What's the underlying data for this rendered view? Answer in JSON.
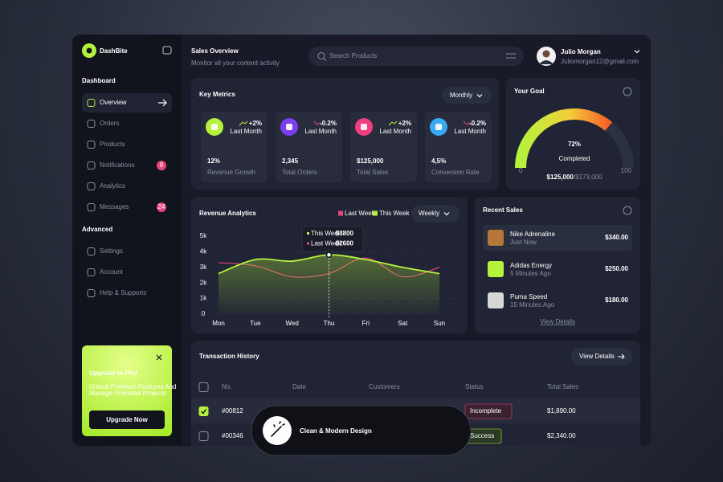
{
  "brand": "DashBite",
  "sidebar": {
    "groups": [
      {
        "title": "Dashboard",
        "items": [
          {
            "label": "Overview",
            "active": true
          },
          {
            "label": "Orders"
          },
          {
            "label": "Products"
          },
          {
            "label": "Notifications",
            "badge": "8"
          },
          {
            "label": "Analytics"
          },
          {
            "label": "Messages",
            "badge": "24"
          }
        ]
      },
      {
        "title": "Advanced",
        "items": [
          {
            "label": "Settings"
          },
          {
            "label": "Account"
          },
          {
            "label": "Help & Supports"
          }
        ]
      }
    ]
  },
  "promo": {
    "title": "Upgrade to Pro!",
    "lines": [
      "Unlock Premium Features And",
      "Manage Unlimited Projects"
    ],
    "button": "Upgrade Now"
  },
  "header": {
    "title": "Sales Overview",
    "subtitle": "Monitor all your content activity",
    "search_placeholder": "Search Products",
    "user_name": "Julio Morgan",
    "user_email": "Juliomorgan12@gmail.com"
  },
  "key_metrics": {
    "title": "Key Metrics",
    "period": "Monthly",
    "cards": [
      {
        "value": "12%",
        "label": "Revenue Growth",
        "change": "+2%",
        "change_label": "Last Month",
        "trend": "up",
        "icon_color": "#b5f23d"
      },
      {
        "value": "2,345",
        "label": "Total Orders",
        "change": "-0.2%",
        "change_label": "Last Month",
        "trend": "down",
        "icon_color": "#7b3ff2"
      },
      {
        "value": "$125,000",
        "label": "Total Sales",
        "change": "+2%",
        "change_label": "Last Month",
        "trend": "up",
        "icon_color": "#ef3f7f"
      },
      {
        "value": "4,5%",
        "label": "Conversion Rate",
        "change": "-0.2%",
        "change_label": "Last Month",
        "trend": "down",
        "icon_color": "#3aa9f5"
      }
    ]
  },
  "goal": {
    "title": "Your Goal",
    "percent": 72,
    "percent_label": "72%",
    "status": "Completed",
    "current": "$125,000",
    "target": "/$173,000",
    "scale": [
      0,
      100
    ]
  },
  "chart_data": {
    "type": "line",
    "title": "Revenue Analytics",
    "period": "Weekly",
    "categories": [
      "Mon",
      "Tue",
      "Wed",
      "Thu",
      "Fri",
      "Sat",
      "Sun"
    ],
    "series": [
      {
        "name": "Last Week",
        "color": "#e8457a",
        "values": [
          3300,
          3100,
          2400,
          2600,
          3600,
          2400,
          3000
        ]
      },
      {
        "name": "This Week",
        "color": "#b5f23d",
        "values": [
          2600,
          3500,
          3400,
          3800,
          3500,
          3000,
          2600
        ]
      }
    ],
    "ylim": [
      0,
      5000
    ],
    "yticks": [
      0,
      {
        "value": 1000,
        "label": "1k"
      },
      {
        "value": 2000,
        "label": "2k"
      },
      {
        "value": 3000,
        "label": "3k"
      },
      {
        "value": 4000,
        "label": "4k"
      },
      {
        "value": 5000,
        "label": "5k"
      }
    ],
    "grid": true,
    "highlight_index": 3,
    "tooltip": {
      "items": [
        {
          "series": "This Week",
          "label": "$3800"
        },
        {
          "series": "Last Week",
          "label": "$2600"
        }
      ]
    }
  },
  "recent_sales": {
    "title": "Recent Sales",
    "items": [
      {
        "name": "Nike Adrenaline",
        "time": "Just Now",
        "price": "$340.00"
      },
      {
        "name": "Adidas Energy",
        "time": "5 Minutes Ago",
        "price": "$250.00"
      },
      {
        "name": "Puma Speed",
        "time": "15 Minutes Ago",
        "price": "$180.00"
      }
    ],
    "link": "View Details"
  },
  "transactions": {
    "title": "Transaction History",
    "button": "View Details",
    "columns": [
      "No.",
      "Date",
      "Customers",
      "Status",
      "Total Sales"
    ],
    "rows": [
      {
        "id": "#00812",
        "status": "Incomplete",
        "total": "$1,890.00",
        "checked": true
      },
      {
        "id": "#00346",
        "status": "Success",
        "total": "$2,340.00",
        "checked": false
      }
    ]
  },
  "banner": "Clean & Modern Design"
}
